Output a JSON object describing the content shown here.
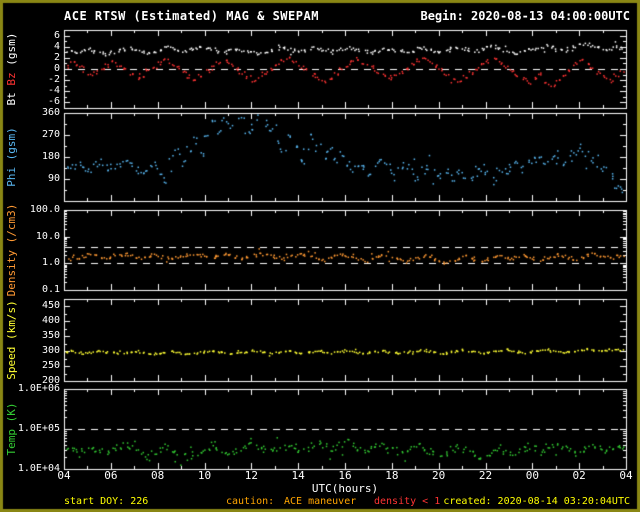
{
  "header": {
    "title": "ACE RTSW (Estimated) MAG & SWEPAM",
    "begin": "Begin: 2020-08-13 04:00:00UTC"
  },
  "xaxis": {
    "label": "UTC(hours)",
    "range_hours": [
      4,
      28
    ],
    "tick_hours": [
      4,
      6,
      8,
      10,
      12,
      14,
      16,
      18,
      20,
      22,
      24,
      26,
      28
    ],
    "tick_labels": [
      "04",
      "06",
      "08",
      "10",
      "12",
      "14",
      "16",
      "18",
      "20",
      "22",
      "00",
      "02",
      "04"
    ]
  },
  "footer": {
    "start_doy": "start DOY: 226",
    "caution_label": "caution:",
    "caution_text": "ACE maneuver",
    "density_warning": "density < 1",
    "created": "created: 2020-08-14 03:20:04UTC"
  },
  "colors": {
    "background": "#000000",
    "frame": "#8a8714",
    "axis": "#ffffff",
    "bt": "#ffffff",
    "bz": "#ff3333",
    "phi": "#58b6f0",
    "density": "#ff9933",
    "speed": "#ffff33",
    "temp": "#33cc33",
    "footer_yellow": "#ffff00",
    "footer_orange": "#ffa500",
    "footer_red": "#ff3333"
  },
  "chart_data": {
    "type": "scatter",
    "title": "ACE RTSW (Estimated) MAG & SWEPAM",
    "begin": "2020-08-13 04:00:00UTC",
    "xlabel": "UTC(hours)",
    "x_start_hour": 4,
    "x_step_hours": 0.25,
    "n_points": 97,
    "panels": [
      {
        "name": "mag",
        "ylabel_parts": [
          {
            "text": "Bt ",
            "color": "#ffffff"
          },
          {
            "text": "Bz ",
            "color": "#ff3333"
          },
          {
            "text": "(gsm)",
            "color": "#ffffff"
          }
        ],
        "scale": "linear",
        "ylim": [
          -7,
          7
        ],
        "yticks": [
          {
            "v": 6,
            "label": "6"
          },
          {
            "v": 4,
            "label": "4"
          },
          {
            "v": 2,
            "label": "2"
          },
          {
            "v": 0,
            "label": "0"
          },
          {
            "v": -2,
            "label": "-2"
          },
          {
            "v": -4,
            "label": "-4"
          },
          {
            "v": -6,
            "label": "-6"
          }
        ],
        "dashed": [
          0
        ],
        "series": [
          {
            "name": "Bt",
            "color": "#ffffff",
            "values": [
              3.2,
              3.4,
              3.1,
              3.5,
              3.6,
              3.3,
              3.0,
              2.8,
              3.1,
              3.4,
              3.6,
              3.8,
              3.5,
              3.2,
              3.0,
              3.3,
              3.7,
              4.0,
              3.8,
              3.5,
              3.4,
              3.6,
              3.9,
              4.1,
              3.8,
              3.6,
              3.3,
              3.1,
              3.4,
              3.7,
              3.5,
              3.2,
              3.0,
              2.9,
              3.2,
              3.5,
              3.8,
              4.0,
              3.7,
              3.4,
              3.2,
              3.5,
              3.8,
              3.6,
              3.3,
              3.1,
              3.4,
              3.6,
              3.9,
              3.7,
              3.4,
              3.2,
              3.0,
              3.3,
              3.6,
              3.8,
              3.5,
              3.3,
              3.1,
              3.4,
              3.7,
              3.9,
              3.6,
              3.4,
              3.2,
              3.5,
              3.8,
              4.0,
              3.7,
              3.5,
              3.3,
              3.6,
              3.9,
              4.1,
              3.8,
              3.5,
              3.3,
              3.0,
              3.2,
              3.5,
              3.7,
              4.0,
              4.2,
              3.9,
              3.6,
              3.4,
              3.7,
              4.0,
              4.3,
              4.5,
              4.2,
              3.9,
              3.6,
              3.8,
              4.1,
              3.9,
              3.7
            ]
          },
          {
            "name": "Bz",
            "color": "#ff3333",
            "values": [
              0.5,
              1.2,
              0.8,
              -0.3,
              -1.0,
              -0.5,
              0.2,
              1.0,
              1.5,
              0.8,
              0.0,
              -0.8,
              -1.5,
              -1.0,
              -0.2,
              0.5,
              1.2,
              1.8,
              1.0,
              0.3,
              -0.5,
              -1.2,
              -1.8,
              -1.0,
              -0.3,
              0.4,
              1.1,
              1.6,
              0.9,
              0.1,
              -0.6,
              -1.3,
              -2.0,
              -1.4,
              -0.6,
              0.2,
              0.9,
              1.5,
              2.0,
              1.3,
              0.5,
              -0.2,
              -1.0,
              -1.6,
              -2.2,
              -1.5,
              -0.8,
              0.0,
              0.7,
              1.4,
              1.9,
              1.2,
              0.4,
              -0.4,
              -1.1,
              -1.8,
              -1.2,
              -0.5,
              0.3,
              1.0,
              1.6,
              2.1,
              1.4,
              0.6,
              -0.1,
              -0.9,
              -1.5,
              -2.1,
              -1.3,
              -0.6,
              0.1,
              0.8,
              1.5,
              2.0,
              1.2,
              0.5,
              -0.3,
              -1.0,
              -1.7,
              -2.3,
              -1.6,
              -0.8,
              -2.5,
              -3.0,
              -2.0,
              -1.0,
              0.0,
              1.0,
              1.8,
              1.2,
              0.4,
              -0.5,
              -1.4,
              -2.0,
              -1.2,
              -0.4,
              0.3
            ]
          }
        ]
      },
      {
        "name": "phi",
        "ylabel_parts": [
          {
            "text": "Phi (gsm)",
            "color": "#58b6f0"
          }
        ],
        "scale": "linear",
        "ylim": [
          0,
          360
        ],
        "yticks": [
          {
            "v": 360,
            "label": "360"
          },
          {
            "v": 270,
            "label": "270"
          },
          {
            "v": 180,
            "label": "180"
          },
          {
            "v": 90,
            "label": "90"
          }
        ],
        "dashed": [],
        "series": [
          {
            "name": "Phi",
            "color": "#58b6f0",
            "values": [
              150,
              145,
              160,
              140,
              135,
              155,
              148,
              142,
              138,
              150,
              160,
              145,
              130,
              125,
              140,
              150,
              120,
              90,
              180,
              200,
              160,
              220,
              250,
              190,
              270,
              320,
              290,
              340,
              310,
              355,
              330,
              280,
              300,
              350,
              320,
              290,
              250,
              200,
              270,
              230,
              180,
              210,
              260,
              240,
              190,
              220,
              170,
              200,
              150,
              130,
              160,
              140,
              120,
              150,
              170,
              140,
              110,
              130,
              150,
              120,
              100,
              130,
              140,
              120,
              110,
              120,
              100,
              130,
              110,
              90,
              120,
              140,
              110,
              100,
              130,
              120,
              140,
              150,
              130,
              160,
              170,
              180,
              160,
              190,
              170,
              150,
              180,
              200,
              220,
              190,
              170,
              150,
              130,
              100,
              60,
              45,
              90
            ]
          }
        ]
      },
      {
        "name": "density",
        "ylabel_parts": [
          {
            "text": "Density (/cm3)",
            "color": "#ff9933"
          }
        ],
        "scale": "log",
        "ylim": [
          0.1,
          100
        ],
        "yticks": [
          {
            "v": 100,
            "label": "100.0"
          },
          {
            "v": 10,
            "label": "10.0"
          },
          {
            "v": 1,
            "label": "1.0"
          },
          {
            "v": 0.1,
            "label": "0.1"
          }
        ],
        "dashed": [
          4,
          1
        ],
        "series": [
          {
            "name": "Density",
            "color": "#ff9933",
            "values": [
              1.8,
              2.0,
              1.7,
              1.9,
              2.2,
              2.0,
              1.8,
              1.6,
              1.9,
              2.1,
              2.3,
              2.0,
              1.8,
              1.7,
              2.0,
              2.2,
              1.9,
              1.7,
              1.5,
              1.8,
              2.0,
              2.2,
              2.4,
              2.1,
              1.9,
              1.7,
              2.0,
              2.3,
              2.1,
              1.8,
              1.6,
              1.9,
              2.1,
              2.4,
              2.2,
              2.0,
              1.7,
              1.5,
              1.8,
              2.0,
              2.3,
              2.1,
              1.9,
              1.6,
              1.4,
              1.7,
              2.0,
              2.2,
              1.9,
              1.7,
              1.5,
              1.3,
              1.6,
              1.8,
              2.1,
              1.9,
              1.6,
              1.4,
              1.2,
              1.5,
              1.7,
              2.0,
              1.8,
              1.5,
              1.3,
              1.1,
              1.4,
              1.6,
              1.9,
              1.7,
              1.4,
              1.2,
              1.5,
              1.8,
              2.0,
              1.7,
              1.5,
              1.8,
              2.1,
              1.9,
              1.6,
              1.4,
              1.7,
              2.0,
              2.2,
              1.9,
              1.7,
              1.5,
              1.8,
              2.1,
              2.3,
              2.0,
              1.8,
              1.6,
              1.9,
              2.1,
              1.8
            ]
          }
        ]
      },
      {
        "name": "speed",
        "ylabel_parts": [
          {
            "text": "Speed (km/s)",
            "color": "#ffff33"
          }
        ],
        "scale": "linear",
        "ylim": [
          200,
          475
        ],
        "yticks": [
          {
            "v": 450,
            "label": "450"
          },
          {
            "v": 400,
            "label": "400"
          },
          {
            "v": 350,
            "label": "350"
          },
          {
            "v": 300,
            "label": "300"
          },
          {
            "v": 250,
            "label": "250"
          },
          {
            "v": 200,
            "label": "200"
          }
        ],
        "dashed": [],
        "series": [
          {
            "name": "Speed",
            "color": "#ffff33",
            "values": [
              300,
              302,
              298,
              295,
              297,
              300,
              303,
              299,
              296,
              294,
              297,
              300,
              302,
              298,
              295,
              293,
              296,
              299,
              301,
              297,
              294,
              292,
              295,
              298,
              300,
              303,
              299,
              296,
              293,
              295,
              298,
              301,
              304,
              300,
              297,
              294,
              296,
              299,
              302,
              298,
              295,
              297,
              300,
              303,
              299,
              296,
              298,
              301,
              304,
              300,
              297,
              295,
              298,
              301,
              303,
              299,
              296,
              294,
              297,
              300,
              302,
              305,
              301,
              298,
              295,
              297,
              300,
              303,
              306,
              302,
              299,
              296,
              298,
              301,
              304,
              307,
              303,
              300,
              297,
              299,
              302,
              305,
              308,
              304,
              301,
              298,
              300,
              303,
              306,
              309,
              305,
              302,
              304,
              307,
              310,
              306,
              303
            ]
          }
        ]
      },
      {
        "name": "temp",
        "ylabel_parts": [
          {
            "text": "Temp (K)",
            "color": "#33cc33"
          }
        ],
        "scale": "log",
        "ylim": [
          10000,
          1000000
        ],
        "yticks": [
          {
            "v": 1000000,
            "label": "1.0E+06"
          },
          {
            "v": 100000,
            "label": "1.0E+05"
          },
          {
            "v": 10000,
            "label": "1.0E+04"
          }
        ],
        "dashed": [
          100000
        ],
        "series": [
          {
            "name": "Temp",
            "color": "#33cc33",
            "values": [
              30000,
              35000,
              28000,
              32000,
              38000,
              33000,
              29000,
              25000,
              30000,
              36000,
              40000,
              34000,
              28000,
              24000,
              20000,
              26000,
              32000,
              38000,
              30000,
              25000,
              21000,
              18000,
              24000,
              30000,
              36000,
              42000,
              35000,
              29000,
              24000,
              28000,
              34000,
              40000,
              45000,
              38000,
              32000,
              27000,
              31000,
              37000,
              43000,
              36000,
              30000,
              34000,
              40000,
              46000,
              39000,
              33000,
              37000,
              42000,
              48000,
              40000,
              34000,
              29000,
              33000,
              39000,
              44000,
              37000,
              31000,
              26000,
              30000,
              36000,
              41000,
              35000,
              29000,
              25000,
              21000,
              26000,
              32000,
              37000,
              31000,
              26000,
              22000,
              19000,
              24000,
              30000,
              35000,
              29000,
              24000,
              28000,
              34000,
              39000,
              33000,
              27000,
              31000,
              36000,
              42000,
              35000,
              30000,
              26000,
              30000,
              35000,
              40000,
              34000,
              29000,
              33000,
              38000,
              32000,
              28000
            ]
          }
        ]
      }
    ]
  }
}
